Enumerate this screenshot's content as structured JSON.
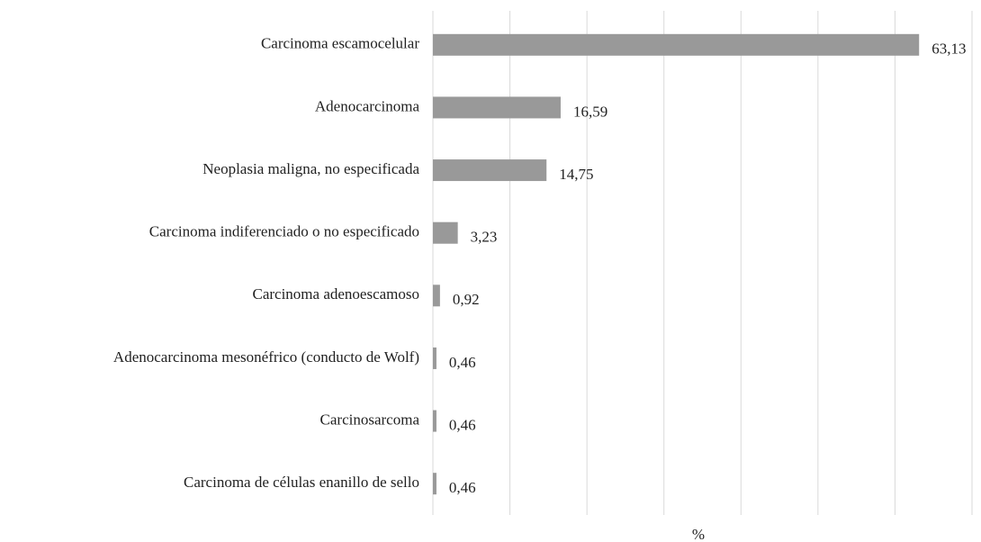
{
  "chart_data": {
    "type": "bar",
    "orientation": "horizontal",
    "categories": [
      "Carcinoma escamocelular",
      "Adenocarcinoma",
      "Neoplasia maligna, no especificada",
      "Carcinoma indiferenciado o no especificado",
      "Carcinoma adenoescamoso",
      "Adenocarcinoma mesonéfrico (conducto de Wolf)",
      "Carcinosarcoma",
      "Carcinoma de células enanillo de sello"
    ],
    "values": [
      63.13,
      16.59,
      14.75,
      3.23,
      0.92,
      0.46,
      0.46,
      0.46
    ],
    "value_labels": [
      "63,13",
      "16,59",
      "14,75",
      "3,23",
      "0,92",
      "0,46",
      "0,46",
      "0,46"
    ],
    "color": "#999999",
    "xlabel": "%",
    "xlim": [
      0,
      70
    ],
    "xticks": [
      0,
      10,
      20,
      30,
      40,
      50,
      60,
      70
    ],
    "grid": true
  }
}
